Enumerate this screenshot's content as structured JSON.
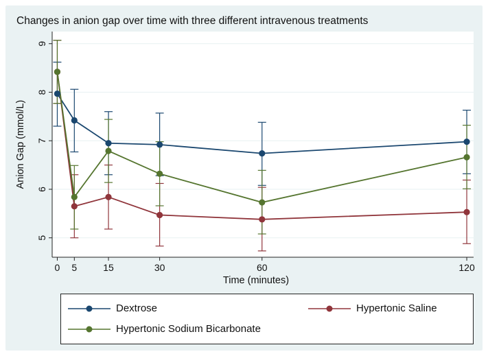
{
  "chart_data": {
    "type": "line",
    "title": "Changes in anion gap over time with three different intravenous treatments",
    "xlabel": "Time (minutes)",
    "ylabel": "Anion Gap (mmol/L)",
    "x": [
      0,
      5,
      15,
      30,
      60,
      120
    ],
    "x_ticks": [
      "0",
      "5",
      "15",
      "30",
      "60",
      "120"
    ],
    "y_ticks": [
      "5",
      "6",
      "7",
      "8",
      "9"
    ],
    "y_tick_values": [
      5,
      6,
      7,
      8,
      9
    ],
    "xlim": [
      -1.5,
      122
    ],
    "ylim": [
      4.6,
      9.25
    ],
    "series": [
      {
        "name": "Dextrose",
        "color": "#1a476f",
        "values": [
          7.97,
          7.42,
          6.95,
          6.92,
          6.74,
          6.98
        ],
        "ci_low": [
          7.3,
          6.77,
          6.3,
          6.28,
          6.08,
          6.32
        ],
        "ci_high": [
          8.62,
          8.06,
          7.6,
          7.57,
          7.38,
          7.63
        ]
      },
      {
        "name": "Hypertonic Saline",
        "color": "#90353b",
        "values": [
          8.42,
          5.65,
          5.84,
          5.47,
          5.38,
          5.53
        ],
        "ci_low": [
          7.77,
          5.0,
          5.18,
          4.83,
          4.73,
          4.88
        ],
        "ci_high": [
          9.07,
          6.3,
          6.5,
          6.12,
          6.04,
          6.19
        ]
      },
      {
        "name": "Hypertonic Sodium Bicarbonate",
        "color": "#55752f",
        "values": [
          8.42,
          5.84,
          6.79,
          6.32,
          5.73,
          6.66
        ],
        "ci_low": [
          7.77,
          5.18,
          6.14,
          5.66,
          5.08,
          6.01
        ],
        "ci_high": [
          9.07,
          6.49,
          7.44,
          6.98,
          6.39,
          7.32
        ]
      }
    ]
  },
  "legend": {
    "dextrose": "Dextrose",
    "saline": "Hypertonic Saline",
    "bicarbonate": "Hypertonic Sodium Bicarbonate"
  }
}
